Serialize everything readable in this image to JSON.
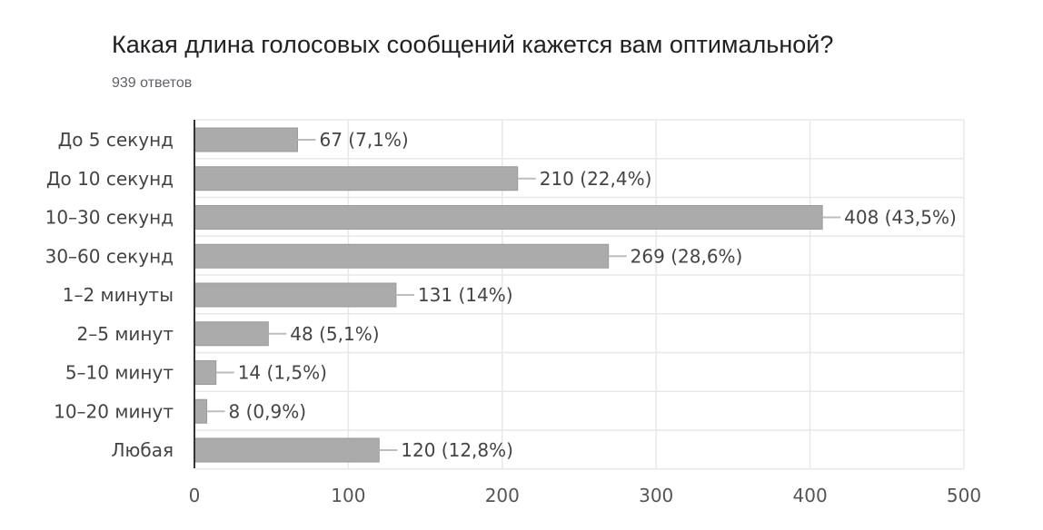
{
  "chart_data": {
    "type": "bar",
    "orientation": "horizontal",
    "title": "Какая длина голосовых сообщений кажется вам оптимальной?",
    "subtitle": "939 ответов",
    "categories": [
      "До 5 секунд",
      "До 10 секунд",
      "10–30 секунд",
      "30–60 секунд",
      "1–2 минуты",
      "2–5 минут",
      "5–10 минут",
      "10–20 минут",
      "Любая"
    ],
    "values": [
      67,
      210,
      408,
      269,
      131,
      48,
      14,
      8,
      120
    ],
    "data_labels": [
      "67 (7,1%)",
      "210 (22,4%)",
      "408 (43,5%)",
      "269 (28,6%)",
      "131 (14%)",
      "48 (5,1%)",
      "14 (1,5%)",
      "8 (0,9%)",
      "120 (12,8%)"
    ],
    "xlim": [
      0,
      500
    ],
    "xticks": [
      0,
      100,
      200,
      300,
      400,
      500
    ],
    "grid": true,
    "legend": false,
    "colors": {
      "bar": "#ababab",
      "bar_border": "#9a9a9a",
      "grid": "#e8e8e8",
      "axis": "#333333",
      "label": "#444444",
      "tick": "#555555",
      "connector": "#bdbdbd"
    }
  }
}
